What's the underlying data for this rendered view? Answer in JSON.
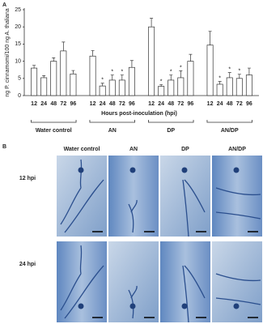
{
  "panel_labels": [
    "A",
    "B"
  ],
  "chart_data": {
    "type": "bar",
    "y_label": "ng P. cinnamomi/100 ng A. thaliana",
    "x_label": "Hours post-inoculation (hpi)",
    "categories": [
      "12",
      "24",
      "48",
      "72",
      "96"
    ],
    "ylim": [
      0,
      25
    ],
    "yticks": [
      0,
      5,
      10,
      15,
      20,
      25
    ],
    "series": [
      {
        "name": "Water control",
        "color": "#ffffff",
        "values": [
          8,
          5.2,
          10,
          13,
          6.3
        ],
        "errors": [
          0.8,
          0.6,
          1,
          2.6,
          1
        ],
        "annotations": [
          null,
          null,
          null,
          null,
          null
        ]
      },
      {
        "name": "AN",
        "color": "#ffffff",
        "values": [
          11.5,
          2.8,
          4.5,
          4.5,
          8.2
        ],
        "errors": [
          1.6,
          0.8,
          1.5,
          1.5,
          2
        ],
        "annotations": [
          null,
          "*",
          "*",
          "*",
          null
        ]
      },
      {
        "name": "DP",
        "color": "#ffffff",
        "values": [
          20,
          2.7,
          4.5,
          5.2,
          10
        ],
        "errors": [
          2.5,
          0.5,
          1.5,
          2,
          2
        ],
        "annotations": [
          null,
          "*",
          "*",
          "*",
          null
        ]
      },
      {
        "name": "AN/DP",
        "color": "#ffffff",
        "values": [
          14.7,
          3.3,
          5.2,
          5,
          6
        ],
        "errors": [
          4,
          0.8,
          1.5,
          1.2,
          2
        ],
        "annotations": [
          null,
          "*",
          "*",
          "*",
          null
        ]
      }
    ]
  },
  "micrographs": {
    "columns": [
      "Water control",
      "AN",
      "DP",
      "AN/DP"
    ],
    "rows": [
      "12 hpi",
      "24 hpi"
    ]
  }
}
